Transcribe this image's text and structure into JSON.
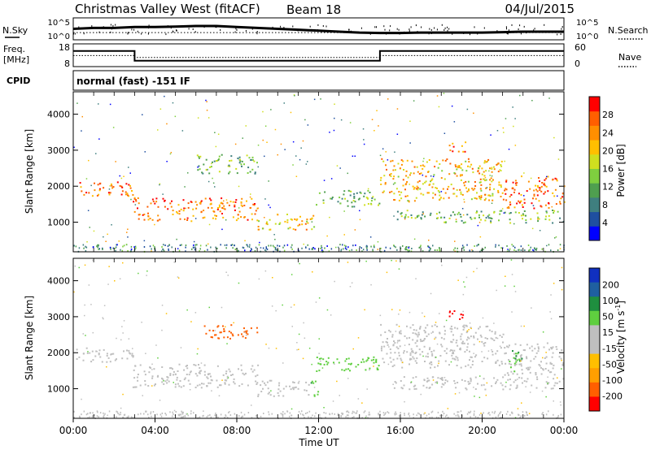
{
  "header": {
    "title": "Christmas Valley West (fitACF)",
    "beam": "Beam 18",
    "date": "04/Jul/2015"
  },
  "side_labels": {
    "nsky": "N.Sky",
    "nsearch": "N.Search",
    "freq_line1": "Freq.",
    "freq_line2": "[MHz]",
    "nave": "Nave",
    "cpid": "CPID"
  },
  "cpid_text": "normal (fast) -151 IF",
  "colors": {
    "power_scale": [
      "#0000ff",
      "#1f4fa0",
      "#3f7f7f",
      "#4f9f4f",
      "#7fcf3f",
      "#cfdf1f",
      "#ffbf00",
      "#ff8f00",
      "#ff5f00",
      "#ff0000"
    ],
    "velocity_scale": [
      "#1030c0",
      "#1f5fa0",
      "#1f8f3f",
      "#5fcf3f",
      "#bfbfbf",
      "#bfbfbf",
      "#ffbf00",
      "#ff9f00",
      "#ff5f00",
      "#ff0000"
    ],
    "ground_scatter": "#bfbfbf"
  },
  "chart_data": [
    {
      "type": "line",
      "panel": "noise",
      "left_ticks": [
        "10^5",
        "10^0"
      ],
      "right_ticks": [
        "10^5",
        "10^0"
      ],
      "series": [
        {
          "name": "N.Sky",
          "x": [
            0,
            1,
            2,
            3,
            4,
            5,
            6,
            7,
            8,
            9,
            10,
            11,
            12,
            13,
            14,
            15,
            16,
            17,
            18,
            19,
            20,
            21,
            22,
            23,
            24
          ],
          "values": [
            0.5,
            0.55,
            0.55,
            0.6,
            0.6,
            0.62,
            0.65,
            0.65,
            0.6,
            0.55,
            0.5,
            0.45,
            0.4,
            0.35,
            0.3,
            0.28,
            0.28,
            0.3,
            0.3,
            0.3,
            0.3,
            0.32,
            0.35,
            0.35,
            0.35
          ]
        },
        {
          "name": "N.Search",
          "x": [
            0,
            24
          ],
          "values": [
            0.3,
            0.3
          ]
        }
      ]
    },
    {
      "type": "line",
      "panel": "frequency",
      "left_ticks": [
        "18",
        "8"
      ],
      "right_ticks": [
        "60",
        "0"
      ],
      "series": [
        {
          "name": "Freq.",
          "x": [
            0,
            3,
            3,
            15,
            15,
            24
          ],
          "values": [
            15.2,
            15.2,
            10.2,
            10.2,
            15.2,
            15.2
          ]
        },
        {
          "name": "Nave",
          "x": [
            0,
            3,
            3,
            15,
            15,
            24
          ],
          "values": [
            29,
            29,
            23,
            23,
            29,
            29
          ]
        }
      ],
      "ylim": [
        8,
        18
      ],
      "ylim_right": [
        0,
        60
      ]
    },
    {
      "type": "heatmap",
      "panel": "power",
      "ylabel": "Slant Range [km]",
      "yticks": [
        1000,
        2000,
        3000,
        4000
      ],
      "ylim": [
        200,
        4600
      ],
      "xlim": [
        0,
        24
      ],
      "colorbar_label": "Power [dB]",
      "colorbar_ticks": [
        4,
        8,
        12,
        16,
        20,
        24,
        28
      ],
      "blobs": [
        {
          "t0": 0.0,
          "t1": 2.9,
          "r0": 1750,
          "r1": 2150,
          "value": 24
        },
        {
          "t0": 2.9,
          "t1": 9.0,
          "r0": 1050,
          "r1": 1700,
          "value": 24
        },
        {
          "t0": 9.0,
          "t1": 11.8,
          "r0": 800,
          "r1": 1250,
          "value": 20
        },
        {
          "t0": 6.0,
          "t1": 9.0,
          "r0": 2350,
          "r1": 2900,
          "value": 12
        },
        {
          "t0": 11.8,
          "t1": 15.0,
          "r0": 1450,
          "r1": 1900,
          "value": 12
        },
        {
          "t0": 15.0,
          "t1": 21.0,
          "r0": 1600,
          "r1": 2800,
          "value": 20
        },
        {
          "t0": 18.3,
          "t1": 19.2,
          "r0": 2950,
          "r1": 3250,
          "value": 24
        },
        {
          "t0": 21.0,
          "t1": 24.0,
          "r0": 1400,
          "r1": 2300,
          "value": 24
        },
        {
          "t0": 15.5,
          "t1": 24.0,
          "r0": 1000,
          "r1": 1350,
          "value": 12
        }
      ]
    },
    {
      "type": "heatmap",
      "panel": "velocity",
      "ylabel": "Slant Range [km]",
      "xlabel": "Time UT",
      "yticks": [
        1000,
        2000,
        3000,
        4000
      ],
      "ylim": [
        200,
        4600
      ],
      "xlim": [
        0,
        24
      ],
      "xtick_labels": [
        "00:00",
        "04:00",
        "08:00",
        "12:00",
        "16:00",
        "20:00",
        "00:00"
      ],
      "colorbar_label": "Velocity [m s",
      "colorbar_label_sup": "-1",
      "colorbar_label_end": "]",
      "colorbar_ticks": [
        "200",
        "100",
        "50",
        "15",
        "-15",
        "-50",
        "-100",
        "-200"
      ],
      "blobs": [
        {
          "t0": 0.0,
          "t1": 2.9,
          "r0": 1750,
          "r1": 2150,
          "value": 0
        },
        {
          "t0": 2.9,
          "t1": 9.0,
          "r0": 1050,
          "r1": 1700,
          "value": 0
        },
        {
          "t0": 9.0,
          "t1": 11.5,
          "r0": 800,
          "r1": 1250,
          "value": 0
        },
        {
          "t0": 11.5,
          "t1": 12.0,
          "r0": 800,
          "r1": 1250,
          "value": 40
        },
        {
          "t0": 6.3,
          "t1": 9.0,
          "r0": 2400,
          "r1": 2800,
          "value": -150
        },
        {
          "t0": 11.8,
          "t1": 15.0,
          "r0": 1450,
          "r1": 1900,
          "value": 30
        },
        {
          "t0": 15.0,
          "t1": 21.0,
          "r0": 1600,
          "r1": 2800,
          "value": 0
        },
        {
          "t0": 18.3,
          "t1": 19.2,
          "r0": 2950,
          "r1": 3250,
          "value": -220
        },
        {
          "t0": 21.0,
          "t1": 24.0,
          "r0": 1400,
          "r1": 2300,
          "value": 0
        },
        {
          "t0": 21.3,
          "t1": 22.1,
          "r0": 1500,
          "r1": 2100,
          "value": 40
        },
        {
          "t0": 15.5,
          "t1": 24.0,
          "r0": 1000,
          "r1": 1350,
          "value": 0
        }
      ]
    }
  ]
}
